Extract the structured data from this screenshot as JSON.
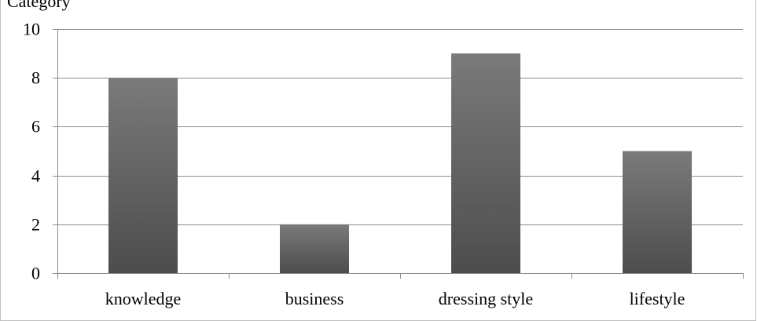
{
  "chart_data": {
    "type": "bar",
    "title": "Category",
    "categories": [
      "knowledge",
      "business",
      "dressing style",
      "lifestyle"
    ],
    "values": [
      8,
      2,
      9,
      5
    ],
    "ylim": [
      0,
      10
    ],
    "yticks": [
      "0",
      "2",
      "4",
      "6",
      "8",
      "10"
    ],
    "xlabel": "",
    "ylabel": "",
    "grid": true,
    "legend": "none",
    "bar_color_top": "#7a7a7a",
    "bar_color_bottom": "#4d4d4d",
    "grid_color": "#8c8c8c",
    "axis_color": "#8c8c8c"
  }
}
